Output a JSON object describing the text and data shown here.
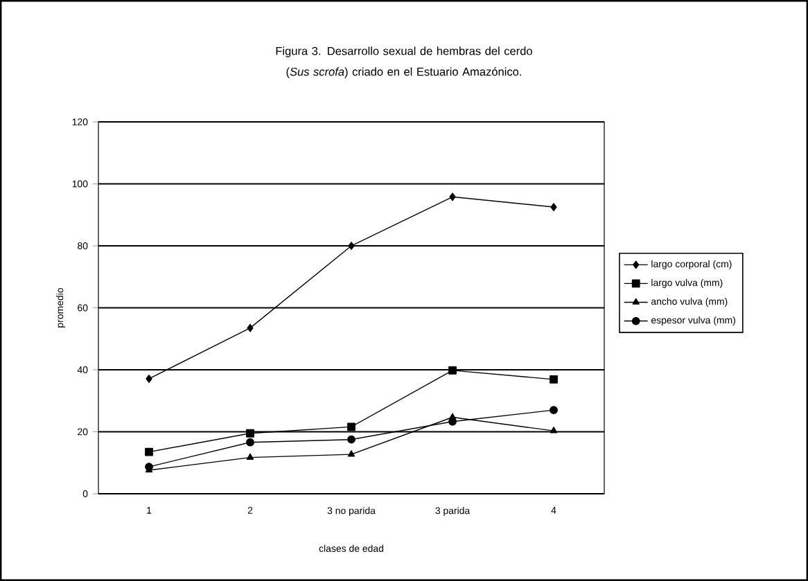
{
  "chart_data": {
    "type": "line",
    "title": "Figura 3. Desarrollo sexual de hembras del cerdo (*Sus scrofa*) criado en el Estuario Amazónico.",
    "xlabel": "clases de edad",
    "ylabel": "promedio",
    "categories": [
      "1",
      "2",
      "3 no parida",
      "3 parida",
      "4"
    ],
    "series": [
      {
        "name": "largo corporal (cm)",
        "color": "#000000",
        "marker": "diamond",
        "values": [
          37.1,
          53.5,
          80,
          95.8,
          92.5
        ]
      },
      {
        "name": "largo vulva (mm)",
        "color": "#000000",
        "marker": "square",
        "values": [
          13.5,
          19.5,
          21.6,
          39.8,
          36.9
        ]
      },
      {
        "name": "ancho vulva (mm)",
        "color": "#000000",
        "marker": "triangle",
        "values": [
          7.6,
          11.7,
          12.7,
          24.7,
          20.3
        ]
      },
      {
        "name": "espesor vulva (mm)",
        "color": "#000000",
        "marker": "circle",
        "values": [
          8.7,
          16.6,
          17.5,
          23.3,
          27
        ]
      }
    ],
    "ylim": [
      0,
      120
    ],
    "yticks": [
      0,
      20,
      40,
      60,
      80,
      100,
      120
    ],
    "grid": "y",
    "legend": "right",
    "line_style": "solid"
  }
}
